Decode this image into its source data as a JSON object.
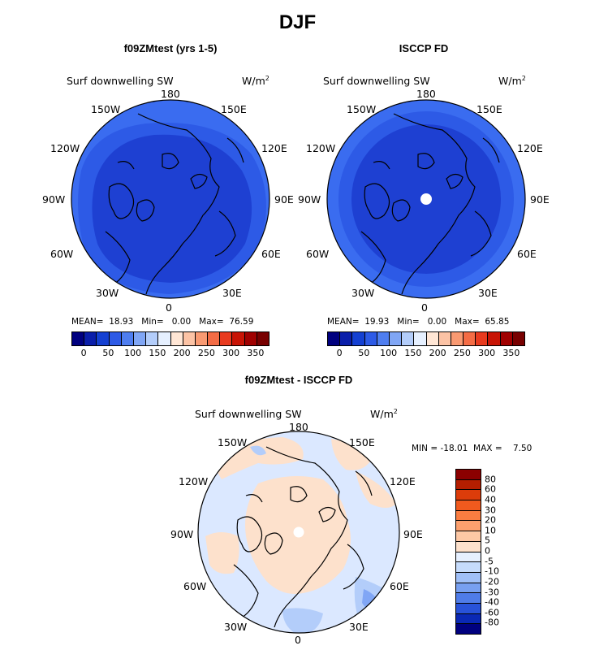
{
  "title": "DJF",
  "panels": [
    {
      "title": "f09ZMtest (yrs 1-5)",
      "field": "Surf downwelling SW",
      "units": "W/m",
      "units_sup": "2",
      "stats": {
        "mean_label": "MEAN=",
        "mean": "18.93",
        "min_label": "Min=",
        "min": "0.00",
        "max_label": "Max=",
        "max": "76.59"
      }
    },
    {
      "title": "ISCCP FD",
      "field": "Surf downwelling SW",
      "units": "W/m",
      "units_sup": "2",
      "stats": {
        "mean_label": "MEAN=",
        "mean": "19.93",
        "min_label": "Min=",
        "min": "0.00",
        "max_label": "Max=",
        "max": "65.85"
      }
    },
    {
      "title": "f09ZMtest - ISCCP FD",
      "field": "Surf downwelling SW",
      "units": "W/m",
      "units_sup": "2",
      "stats": {
        "min_label": "MIN =",
        "min": "-18.01",
        "max_label": "MAX =",
        "max": "7.50"
      }
    }
  ],
  "longitude_labels": {
    "top": "180",
    "bottom": "0",
    "left": "90W",
    "right": "90E",
    "ul1": "150W",
    "ul2": "120W",
    "ur1": "150E",
    "ur2": "120E",
    "ll1": "60W",
    "ll2": "30W",
    "lr1": "60E",
    "lr2": "30E"
  },
  "colorbar_abs": {
    "ticks": [
      "0",
      "50",
      "100",
      "150",
      "200",
      "250",
      "300",
      "350"
    ],
    "colors": [
      "#00007f",
      "#0a1eaa",
      "#1440d2",
      "#2d5ae6",
      "#4f7ef0",
      "#80a6f5",
      "#b3cdfa",
      "#e6f0ff",
      "#ffe6d5",
      "#fcc3a5",
      "#f99a72",
      "#f46c45",
      "#e83a1e",
      "#c81405",
      "#a00000",
      "#780000"
    ]
  },
  "colorbar_diff": {
    "labels": [
      "80",
      "60",
      "40",
      "30",
      "20",
      "10",
      "5",
      "0",
      "-5",
      "-10",
      "-20",
      "-30",
      "-40",
      "-60",
      "-80"
    ],
    "colors": [
      "#8b0000",
      "#b41e00",
      "#dc3c0a",
      "#f05a1e",
      "#fa7d41",
      "#fca06e",
      "#fdc8a5",
      "#fde1cc",
      "#e6f0ff",
      "#c6dcfc",
      "#a0c0f8",
      "#78a0f0",
      "#4f7ce8",
      "#2852d8",
      "#0a28b4",
      "#00007f"
    ]
  },
  "map_colors": {
    "deep_blue": "#1e40d2",
    "mid_blue": "#2d5ae6",
    "outer_blue": "#3a6cf0",
    "diff_positive": "#fde1cc",
    "diff_light_blue": "#dbe8ff",
    "diff_blue": "#b3cdfa",
    "diff_mid_blue": "#80a6f5"
  }
}
